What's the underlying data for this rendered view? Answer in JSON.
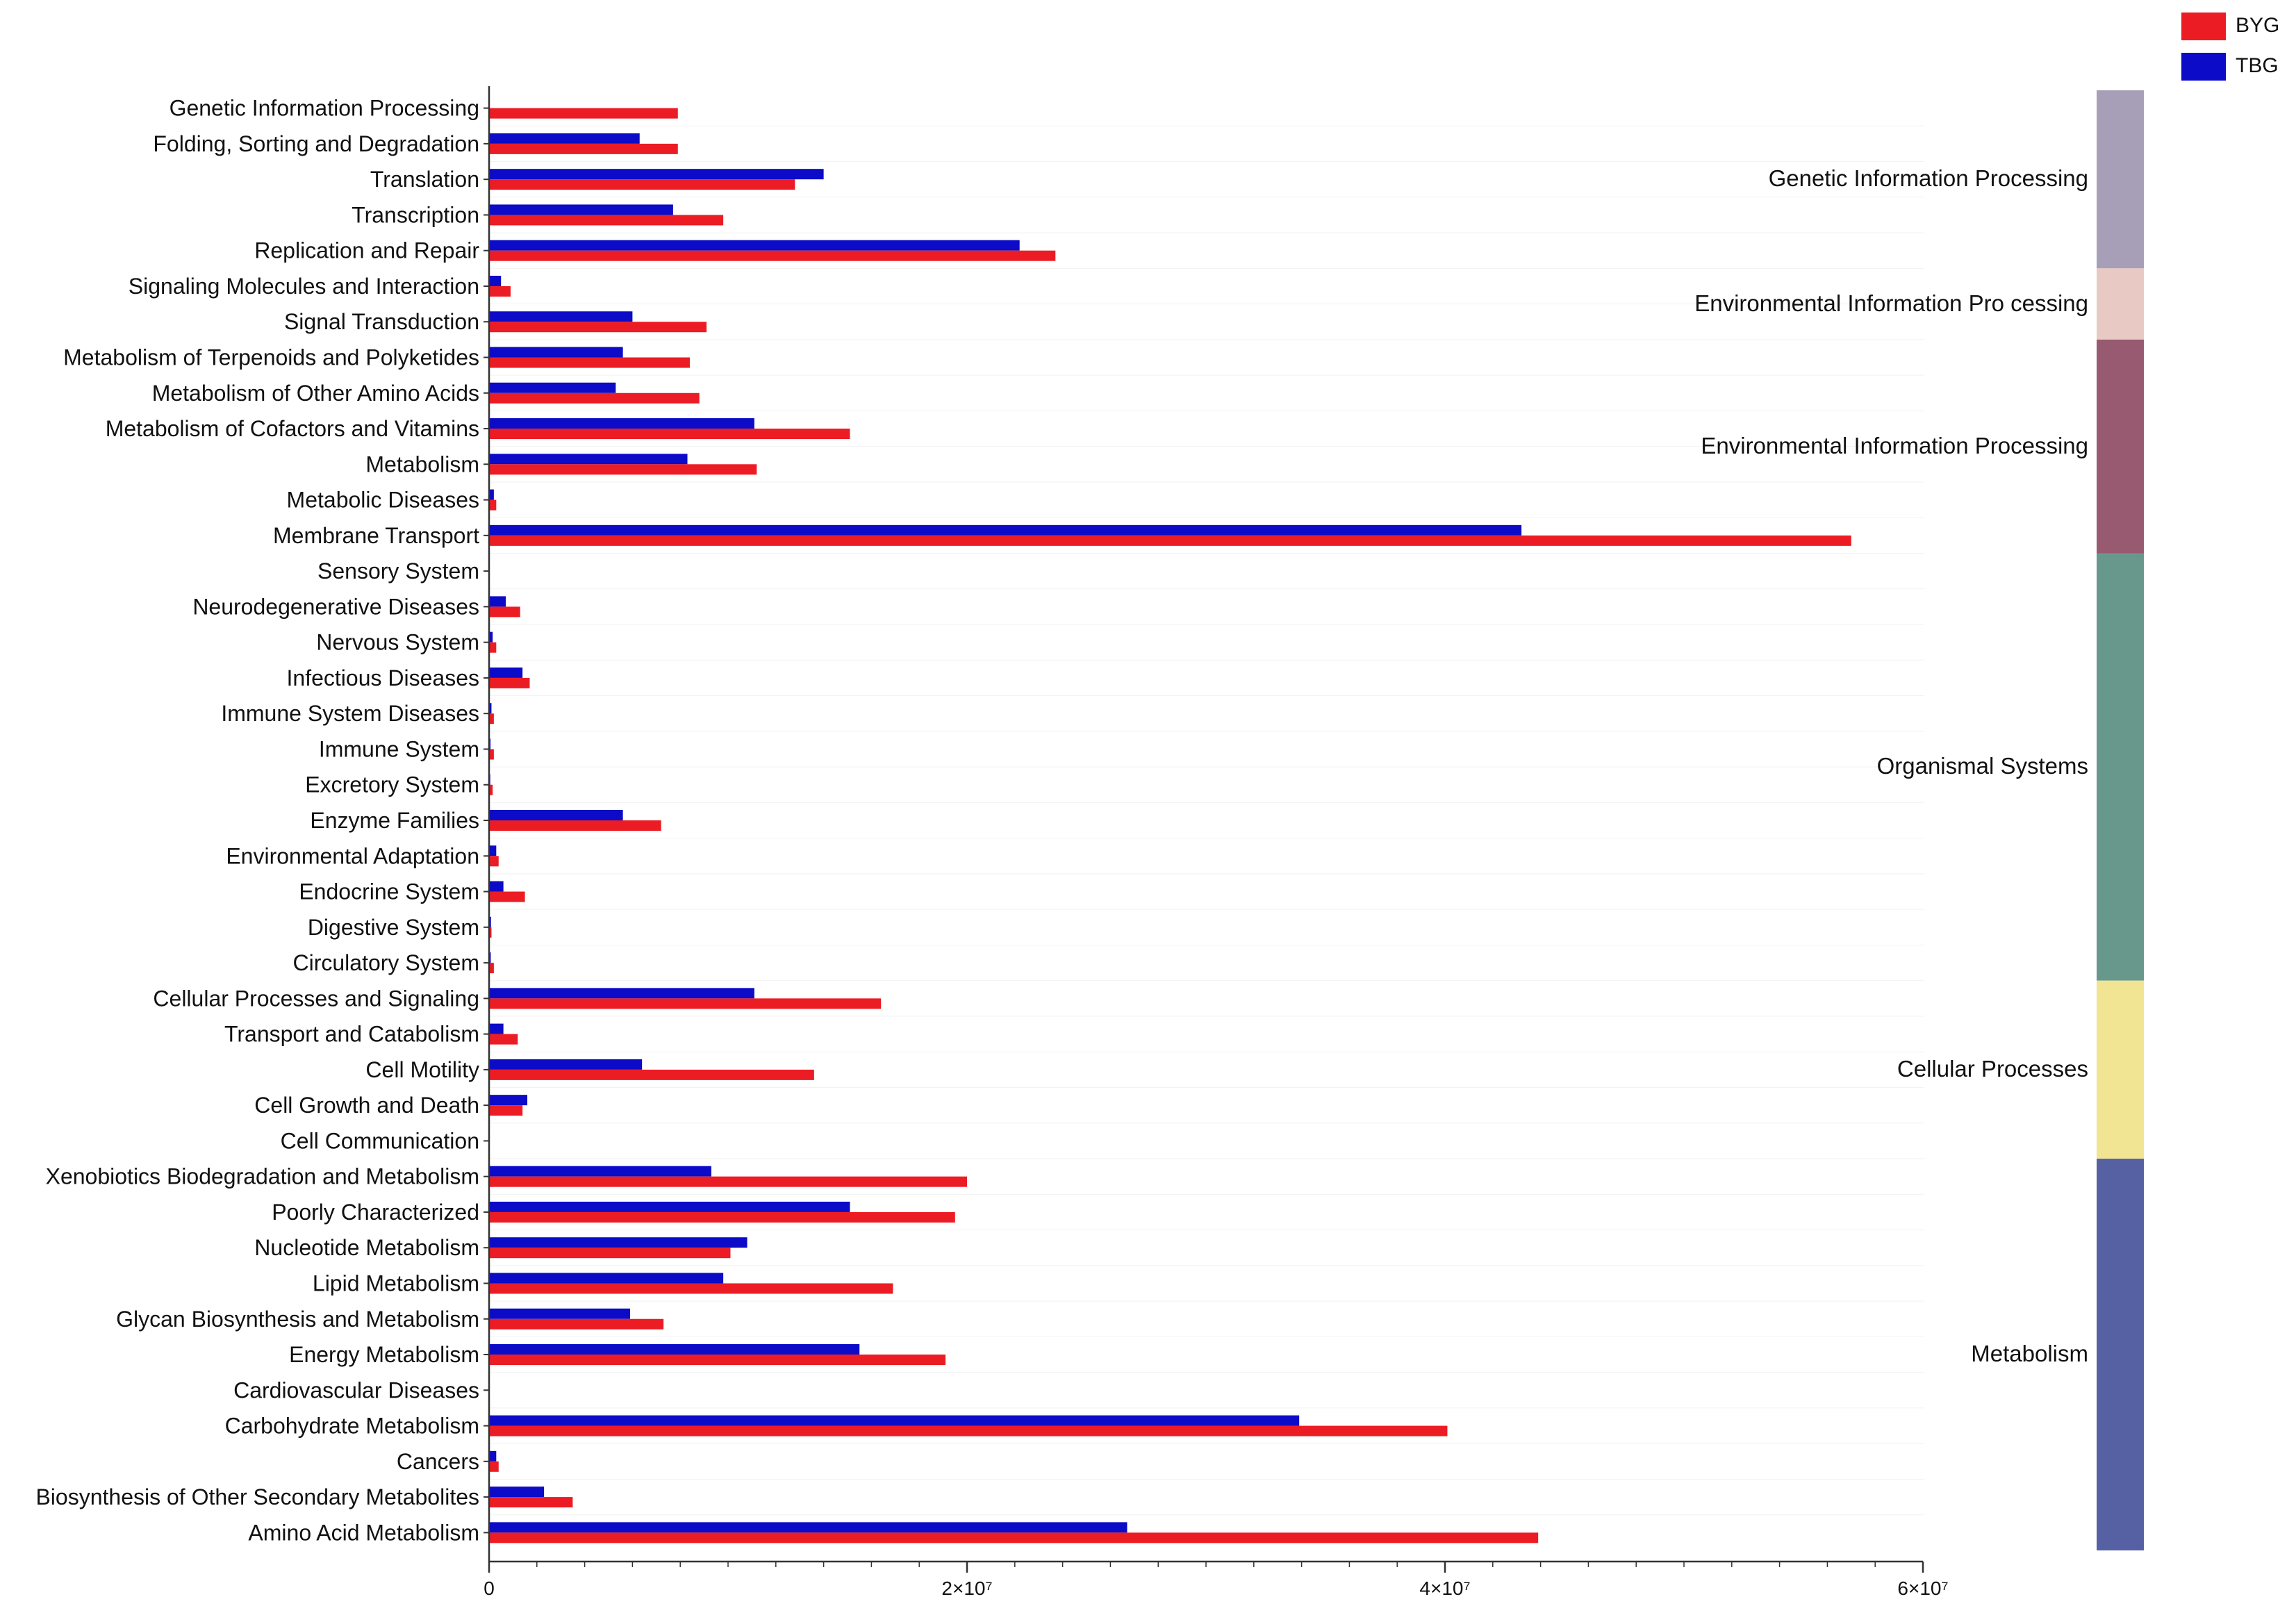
{
  "chart_data": {
    "type": "bar",
    "orientation": "horizontal",
    "title": "",
    "xlabel": "",
    "ylabel": "",
    "xlim": [
      0,
      60000000
    ],
    "x_ticks": [
      {
        "value": 0,
        "label": "0"
      },
      {
        "value": 20000000,
        "label": "2×10⁷"
      },
      {
        "value": 40000000,
        "label": "4×10⁷"
      },
      {
        "value": 60000000,
        "label": "6×10⁷"
      }
    ],
    "grid": false,
    "legend_position": "top-right",
    "categories": [
      "Genetic Information Processing",
      "Folding, Sorting and Degradation",
      "Translation",
      "Transcription",
      "Replication and Repair",
      "Signaling Molecules and Interaction",
      "Signal Transduction",
      "Metabolism of Terpenoids and Polyketides",
      "Metabolism of Other Amino Acids",
      "Metabolism of Cofactors and Vitamins",
      "Metabolism",
      "Metabolic Diseases",
      "Membrane Transport",
      "Sensory System",
      "Neurodegenerative Diseases",
      "Nervous System",
      "Infectious Diseases",
      "Immune System Diseases",
      "Immune System",
      "Excretory System",
      "Enzyme Families",
      "Environmental Adaptation",
      "Endocrine System",
      "Digestive System",
      "Circulatory System",
      "Cellular Processes and Signaling",
      "Transport and Catabolism",
      "Cell Motility",
      "Cell Growth and Death",
      "Cell Communication",
      "Xenobiotics Biodegradation and Metabolism",
      "Poorly Characterized",
      "Nucleotide Metabolism",
      "Lipid Metabolism",
      "Glycan Biosynthesis and Metabolism",
      "Energy Metabolism",
      "Cardiovascular Diseases",
      "Carbohydrate Metabolism",
      "Cancers",
      "Biosynthesis of Other Secondary Metabolites",
      "Amino Acid Metabolism"
    ],
    "series": [
      {
        "name": "TBG",
        "color": "#0b0bc8",
        "values": [
          0,
          6300000,
          14000000,
          7700000,
          22200000,
          500000,
          6000000,
          5600000,
          5300000,
          11100000,
          8300000,
          200000,
          43200000,
          0,
          700000,
          150000,
          1400000,
          100000,
          60000,
          50000,
          5600000,
          300000,
          600000,
          80000,
          70000,
          11100000,
          600000,
          6400000,
          1600000,
          0,
          9300000,
          15100000,
          10800000,
          9800000,
          5900000,
          15500000,
          0,
          33900000,
          300000,
          2300000,
          26700000
        ]
      },
      {
        "name": "BYG",
        "color": "#ec1c24",
        "values": [
          7900000,
          7900000,
          12800000,
          9800000,
          23700000,
          900000,
          9100000,
          8400000,
          8800000,
          15100000,
          11200000,
          300000,
          57000000,
          0,
          1300000,
          300000,
          1700000,
          200000,
          200000,
          150000,
          7200000,
          400000,
          1500000,
          100000,
          200000,
          16400000,
          1200000,
          13600000,
          1400000,
          0,
          20000000,
          19500000,
          10100000,
          16900000,
          7300000,
          19100000,
          0,
          40100000,
          400000,
          3500000,
          43900000
        ]
      }
    ],
    "groups": [
      {
        "name": "Genetic Information Processing",
        "color": "#a79fb7",
        "from_category": "Genetic Information Processing",
        "to_category": "Replication and Repair"
      },
      {
        "name": "Environmental Information Pro cessing",
        "color": "#e8c9c3",
        "from_category": "Signaling Molecules and Interaction",
        "to_category": "Signal Transduction"
      },
      {
        "name": "Environmental Information Processing",
        "color": "#975a70",
        "from_category": "Metabolism of Terpenoids and Polyketides",
        "to_category": "Membrane Transport"
      },
      {
        "name": "Organismal Systems",
        "color": "#68988c",
        "from_category": "Sensory System",
        "to_category": "Circulatory System"
      },
      {
        "name": "Cellular Processes",
        "color": "#f1e492",
        "from_category": "Cellular Processes and Signaling",
        "to_category": "Cell Communication"
      },
      {
        "name": "Metabolism",
        "color": "#5561a2",
        "from_category": "Xenobiotics Biodegradation and Metabolism",
        "to_category": "Amino Acid Metabolism"
      }
    ]
  }
}
